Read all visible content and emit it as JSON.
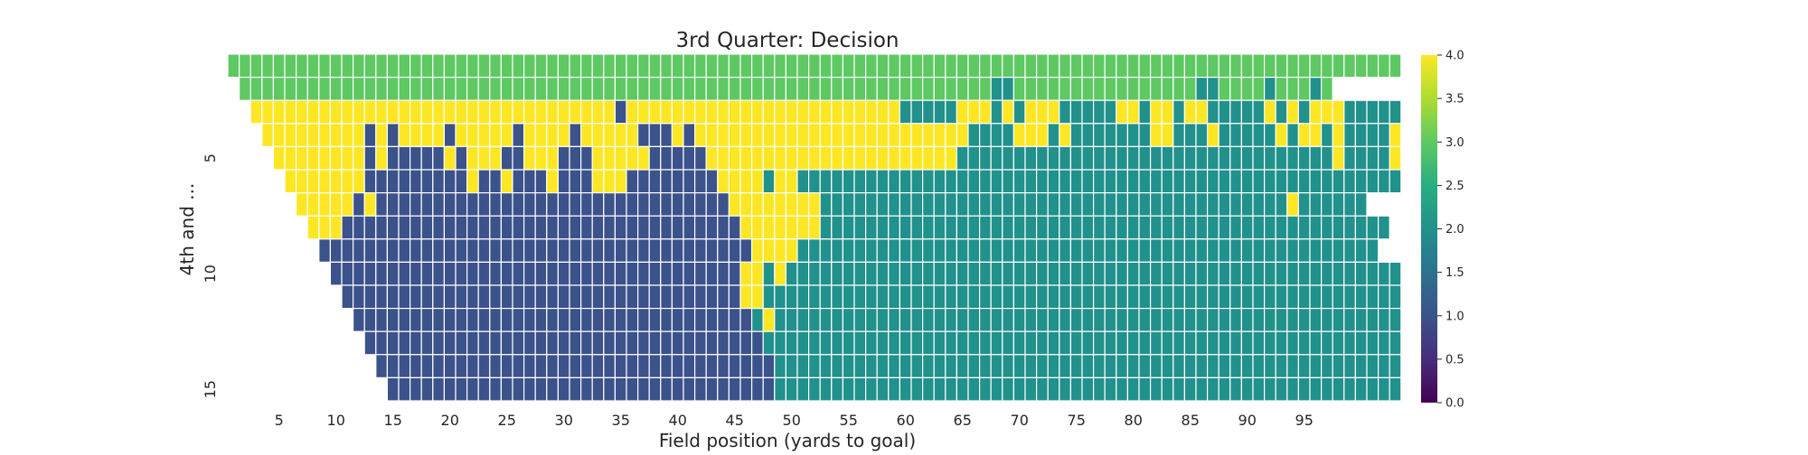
{
  "chart_data": {
    "type": "heatmap",
    "title": "3rd Quarter: Decision",
    "xlabel": "Field position (yards to goal)",
    "ylabel": "4th and ...",
    "x": [
      1,
      99
    ],
    "y": [
      1,
      15
    ],
    "xticks": [
      5,
      10,
      15,
      20,
      25,
      30,
      35,
      40,
      45,
      50,
      55,
      60,
      65,
      70,
      75,
      80,
      85,
      90,
      95
    ],
    "yticks": [
      5,
      10,
      15
    ],
    "colorbar": {
      "min": 0.0,
      "max": 4.0,
      "ticks": [
        "0.0",
        "0.5",
        "1.0",
        "1.5",
        "2.0",
        "2.5",
        "3.0",
        "3.5",
        "4.0"
      ],
      "colormap": "viridis"
    },
    "palette": {
      "1": "#3b528b",
      "2": "#21918c",
      "2.5": "#1f9e89",
      "3": "#5ec962",
      "4": "#fde725"
    },
    "row_start": [
      1,
      2,
      3,
      4,
      5,
      6,
      7,
      8,
      9,
      10,
      11,
      12,
      13,
      14,
      15
    ],
    "rows": [
      "3333333333333333333333333333333333333333333333333333333333333333333333333333333333333333333333333333333",
      "333333333333333333333333333333333333333333333333333333333333333333223333333333333333223333233323",
      "44444444444444444444444444444444144444444444444444444444422222444242444222224424424422222424244422222",
      "4444444441414444144444144441444441114144444444444444444444444422224442422222224422242222242442422224",
      "444444441411111414441144411144444111114444444444444444444444222222222222222222222222222222222422224",
      "44444441111111114114111411144411111111444424422222222222222222222222222222222222222222222222222222",
      "4444414111111111111111111111111111111144444444222222222222222222222222222222222222222224222222",
      "44411111111111111111111111111111111111444444422222222222222222222222222222222222222222222222222",
      "111111111111111111111111111111111111114444222222222222222222222222222222222222222222222222222",
      "1111111111111111111111111111111111114424222222222222222222222222222222222222222222222222222222",
      "111111111111111111111111111111111114422222222222222222222222222222222222222222222222222222222",
      "11111111111111111111111111111111111242222222222222222222222222222222222222222222222222222222",
      "1111111111111111111111111111111111122222222222222222222222222222222222222222222222222222222",
      "111111111111111111111111111111111112222222222222222222222222222222222222222222222222222222",
      "11111111111111111111111111111111112222222222222222222222222222222222222222222222222222222"
    ]
  }
}
